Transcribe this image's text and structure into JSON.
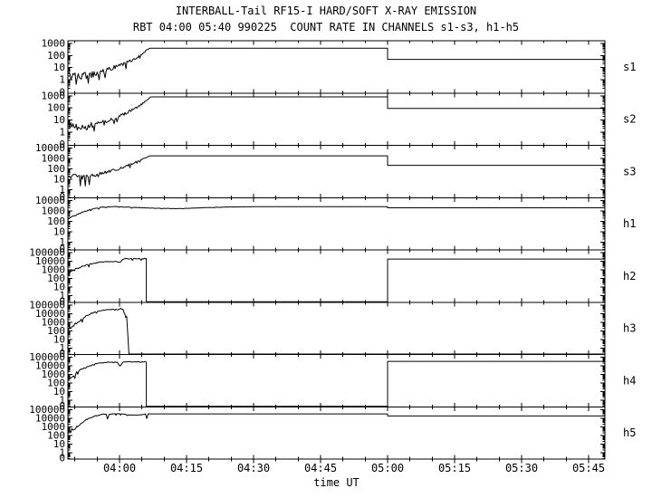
{
  "colors": {
    "background": "#ffffff",
    "foreground": "#000000"
  },
  "chart_data": {
    "type": "line",
    "title": "INTERBALL-Tail RF15-I HARD/SOFT X-RAY EMISSION",
    "subtitle": "RBT 04:00 05:40 990225  COUNT RATE IN CHANNELS s1-s3, h1-h5",
    "x_axis": {
      "label": "time UT",
      "start_minutes": -11.6,
      "end_minutes": 108.6,
      "minor_step_minutes": 5,
      "major_step_minutes": 15,
      "ticks": [
        {
          "t": 0,
          "label": "04:00"
        },
        {
          "t": 15,
          "label": "04:15"
        },
        {
          "t": 30,
          "label": "04:30"
        },
        {
          "t": 45,
          "label": "04:45"
        },
        {
          "t": 60,
          "label": "05:00"
        },
        {
          "t": 75,
          "label": "05:15"
        },
        {
          "t": 90,
          "label": "05:30"
        },
        {
          "t": 105,
          "label": "05:45"
        }
      ]
    },
    "y_axis_note": "log count rate, 0 label marks panel bottom",
    "panels": [
      {
        "id": "s1",
        "right_label": "s1",
        "kmax": 3,
        "ylabels": [
          "1000",
          "100",
          "10",
          "1",
          "0"
        ],
        "trace": [
          [
            -11.6,
            2.5,
            0.35
          ],
          [
            -9,
            1.8,
            0.35
          ],
          [
            -7,
            2.2,
            0.3
          ],
          [
            -5,
            3.5,
            0.25
          ],
          [
            -3,
            6,
            0.2
          ],
          [
            -1,
            11,
            0.15
          ],
          [
            1,
            20,
            0.12
          ],
          [
            3,
            45,
            0.1
          ],
          [
            5,
            120,
            0.07
          ],
          [
            6.3,
            330,
            0.03
          ],
          [
            6.8,
            400,
            0
          ],
          [
            60,
            400,
            0
          ],
          [
            60,
            48,
            0
          ],
          [
            108.6,
            48,
            0
          ]
        ]
      },
      {
        "id": "s2",
        "right_label": "s2",
        "kmax": 3,
        "ylabels": [
          "1000",
          "100",
          "10",
          "1",
          "0"
        ],
        "trace": [
          [
            -11.6,
            3.5,
            0.32
          ],
          [
            -9,
            2.5,
            0.32
          ],
          [
            -7,
            3,
            0.28
          ],
          [
            -5,
            5,
            0.22
          ],
          [
            -3,
            8,
            0.18
          ],
          [
            -1,
            15,
            0.15
          ],
          [
            1,
            30,
            0.12
          ],
          [
            3,
            70,
            0.1
          ],
          [
            5,
            200,
            0.07
          ],
          [
            6.5,
            600,
            0.03
          ],
          [
            7,
            800,
            0
          ],
          [
            60,
            800,
            0
          ],
          [
            60,
            90,
            0
          ],
          [
            108.6,
            90,
            0
          ]
        ]
      },
      {
        "id": "s3",
        "right_label": "s3",
        "kmax": 4,
        "ylabels": [
          "10000",
          "1000",
          "100",
          "10",
          "1",
          "0"
        ],
        "trace": [
          [
            -11.6,
            20,
            0.3
          ],
          [
            -9,
            14,
            0.3
          ],
          [
            -7,
            18,
            0.25
          ],
          [
            -5,
            30,
            0.2
          ],
          [
            -3,
            50,
            0.15
          ],
          [
            -1,
            80,
            0.12
          ],
          [
            1,
            150,
            0.1
          ],
          [
            3,
            350,
            0.08
          ],
          [
            5,
            800,
            0.05
          ],
          [
            6.7,
            1700,
            0.02
          ],
          [
            7,
            1800,
            0
          ],
          [
            60,
            1800,
            0
          ],
          [
            60,
            220,
            0
          ],
          [
            108.6,
            220,
            0
          ]
        ]
      },
      {
        "id": "h1",
        "right_label": "h1",
        "kmax": 4,
        "ylabels": [
          "10000",
          "1000",
          "100",
          "10",
          "1",
          "0"
        ],
        "trace": [
          [
            -11.6,
            150,
            0.08
          ],
          [
            -10,
            350,
            0.06
          ],
          [
            -8,
            800,
            0.05
          ],
          [
            -6,
            1500,
            0.04
          ],
          [
            -4,
            2200,
            0.03
          ],
          [
            -1,
            2600,
            0.02
          ],
          [
            2,
            2200,
            0.02
          ],
          [
            8,
            1750,
            0.02
          ],
          [
            13,
            1600,
            0.015
          ],
          [
            18,
            1900,
            0.01
          ],
          [
            24,
            2300,
            0.01
          ],
          [
            32,
            2450,
            0
          ],
          [
            60,
            2450,
            0
          ],
          [
            60,
            1900,
            0
          ],
          [
            108.6,
            1900,
            0
          ]
        ]
      },
      {
        "id": "h2",
        "right_label": "h2",
        "kmax": 5,
        "ylabels": [
          "100000",
          "10000",
          "1000",
          "100",
          "10",
          "1",
          "0"
        ],
        "trace": [
          [
            -11.6,
            400,
            0.3
          ],
          [
            -10.5,
            700,
            0.2
          ],
          [
            -9,
            1800,
            0.12
          ],
          [
            -7.5,
            3500,
            0.08
          ],
          [
            -6,
            5500,
            0.06
          ],
          [
            -4.5,
            7500,
            0.05
          ],
          [
            -3,
            8800,
            0.04
          ],
          [
            -0.5,
            9000,
            0.04
          ],
          [
            0.2,
            7000,
            0.05
          ],
          [
            0.6,
            15000,
            0.05
          ],
          [
            1.2,
            19000,
            0.06
          ],
          [
            6,
            20000,
            0.06
          ],
          [
            6,
            0,
            0
          ],
          [
            60,
            0,
            0
          ],
          [
            60,
            18000,
            0
          ],
          [
            108.6,
            18000,
            0
          ]
        ]
      },
      {
        "id": "h3",
        "right_label": "h3",
        "kmax": 5,
        "ylabels": [
          "100000",
          "10000",
          "1000",
          "100",
          "10",
          "1",
          "0"
        ],
        "trace": [
          [
            -11.6,
            150,
            0.3
          ],
          [
            -10.5,
            400,
            0.2
          ],
          [
            -9,
            1500,
            0.12
          ],
          [
            -7.5,
            5000,
            0.08
          ],
          [
            -6,
            12000,
            0.05
          ],
          [
            -4.5,
            20000,
            0.04
          ],
          [
            -3,
            27000,
            0.03
          ],
          [
            -1,
            30000,
            0.03
          ],
          [
            -0.2,
            28000,
            0.06
          ],
          [
            0.3,
            42000,
            0.06
          ],
          [
            0.8,
            30000,
            0.1
          ],
          [
            1.6,
            3000,
            0.3
          ],
          [
            2.1,
            0,
            0
          ],
          [
            108.6,
            0,
            0
          ]
        ]
      },
      {
        "id": "h4",
        "right_label": "h4",
        "kmax": 5,
        "ylabels": [
          "100000",
          "10000",
          "1000",
          "100",
          "10",
          "1",
          "0"
        ],
        "trace": [
          [
            -11.6,
            300,
            0.3
          ],
          [
            -10,
            1200,
            0.15
          ],
          [
            -8.5,
            4000,
            0.08
          ],
          [
            -7,
            9000,
            0.05
          ],
          [
            -5.5,
            16000,
            0.04
          ],
          [
            -4,
            23000,
            0.03
          ],
          [
            -2,
            27000,
            0.03
          ],
          [
            -0.5,
            28000,
            0.02
          ],
          [
            0.1,
            9000,
            0.06
          ],
          [
            0.7,
            26000,
            0.04
          ],
          [
            1.3,
            29000,
            0.03
          ],
          [
            6,
            29000,
            0.04
          ],
          [
            6,
            0,
            0
          ],
          [
            60,
            0,
            0
          ],
          [
            60,
            33000,
            0
          ],
          [
            108.6,
            33000,
            0
          ]
        ]
      },
      {
        "id": "h5",
        "right_label": "h5",
        "kmax": 5,
        "ylabels": [
          "100000",
          "10000",
          "1000",
          "100",
          "10",
          "1",
          "0"
        ],
        "trace": [
          [
            -11.6,
            150,
            0.3
          ],
          [
            -10,
            700,
            0.18
          ],
          [
            -8.5,
            3000,
            0.1
          ],
          [
            -7,
            9000,
            0.06
          ],
          [
            -5.5,
            18000,
            0.04
          ],
          [
            -4,
            27000,
            0.03
          ],
          [
            -3,
            30000,
            0.03
          ],
          [
            -2.7,
            8000,
            0.05
          ],
          [
            -2.3,
            28000,
            0.04
          ],
          [
            -1,
            32000,
            0.04
          ],
          [
            0,
            30000,
            0.05
          ],
          [
            1.5,
            26000,
            0.05
          ],
          [
            3,
            21000,
            0.04
          ],
          [
            4.5,
            24000,
            0.03
          ],
          [
            5.8,
            30000,
            0.02
          ],
          [
            6.1,
            9000,
            0.04
          ],
          [
            6.4,
            31000,
            0
          ],
          [
            60,
            31000,
            0
          ],
          [
            60,
            17500,
            0
          ],
          [
            108.6,
            17500,
            0
          ]
        ]
      }
    ]
  }
}
